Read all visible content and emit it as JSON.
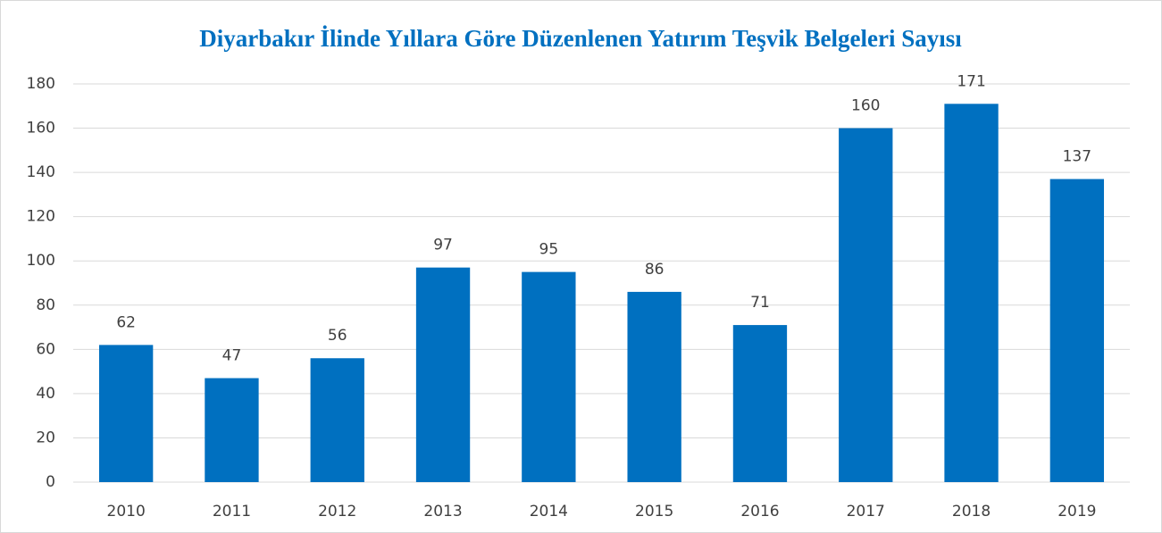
{
  "chart_data": {
    "type": "bar",
    "title": "Diyarbakır İlinde Yıllara Göre Düzenlenen Yatırım Teşvik Belgeleri Sayısı",
    "categories": [
      "2010",
      "2011",
      "2012",
      "2013",
      "2014",
      "2015",
      "2016",
      "2017",
      "2018",
      "2019"
    ],
    "values": [
      62,
      47,
      56,
      97,
      95,
      86,
      71,
      160,
      171,
      137
    ],
    "color": "#0070c0",
    "ylim": [
      0,
      180
    ],
    "yticks": [
      0,
      20,
      40,
      60,
      80,
      100,
      120,
      140,
      160,
      180
    ],
    "grid": true
  }
}
